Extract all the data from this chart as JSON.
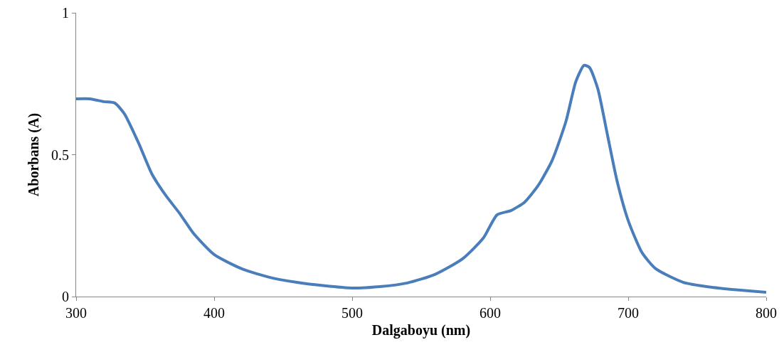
{
  "chart_data": {
    "type": "line",
    "xlabel": "Dalgaboyu (nm)",
    "ylabel": "Aborbans (A)",
    "x": [
      300,
      310,
      320,
      328,
      335,
      345,
      355,
      365,
      375,
      385,
      400,
      420,
      440,
      460,
      480,
      500,
      520,
      540,
      560,
      580,
      595,
      605,
      615,
      625,
      635,
      645,
      655,
      662,
      668,
      672,
      678,
      685,
      692,
      700,
      710,
      720,
      740,
      760,
      780,
      800
    ],
    "series": [
      {
        "color": "#4a7ebb",
        "values": [
          0.697,
          0.697,
          0.687,
          0.682,
          0.644,
          0.544,
          0.431,
          0.356,
          0.293,
          0.223,
          0.148,
          0.098,
          0.068,
          0.05,
          0.038,
          0.03,
          0.035,
          0.048,
          0.078,
          0.133,
          0.206,
          0.288,
          0.303,
          0.333,
          0.393,
          0.481,
          0.619,
          0.757,
          0.815,
          0.807,
          0.732,
          0.569,
          0.406,
          0.268,
          0.155,
          0.098,
          0.05,
          0.033,
          0.023,
          0.015
        ]
      }
    ],
    "xlim": [
      300,
      800
    ],
    "xticks": [
      300,
      400,
      500,
      600,
      700,
      800
    ],
    "ylim": [
      0,
      1
    ],
    "yticks": [
      0,
      0.5,
      1
    ],
    "grid": false,
    "marker": "none",
    "line_style": "solid"
  }
}
